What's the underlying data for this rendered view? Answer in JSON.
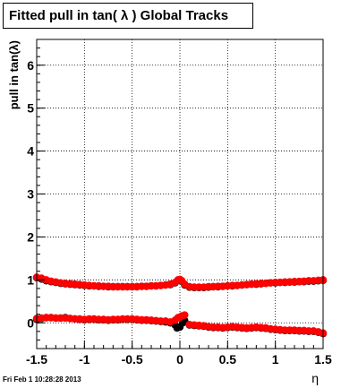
{
  "title": "Fitted pull in tan( λ )  Global Tracks",
  "footer_stamp": "Fri Feb  1 10:28:28 2013",
  "chart_data": {
    "type": "scatter",
    "title": "Fitted pull in tan( λ )  Global Tracks",
    "xlabel": "η",
    "ylabel": "pull in tan(λ)",
    "xlim": [
      -1.5,
      1.5
    ],
    "ylim": [
      -0.6,
      6.6
    ],
    "x_ticks": [
      -1.5,
      -1,
      -0.5,
      0,
      0.5,
      1,
      1.5
    ],
    "x_tick_labels": [
      "-1.5",
      "-1",
      "-0.5",
      "0",
      "0.5",
      "1",
      "1.5"
    ],
    "y_ticks": [
      0,
      1,
      2,
      3,
      4,
      5,
      6
    ],
    "y_tick_labels": [
      "0",
      "1",
      "2",
      "3",
      "4",
      "5",
      "6"
    ],
    "grid": true,
    "series": [
      {
        "color": "#000000",
        "x": [
          -1.5,
          -1.45,
          -1.4,
          -1.35,
          -1.3,
          -1.25,
          -1.2,
          -1.15,
          -1.1,
          -1.05,
          -1.0,
          -0.95,
          -0.9,
          -0.85,
          -0.8,
          -0.75,
          -0.7,
          -0.65,
          -0.6,
          -0.55,
          -0.5,
          -0.45,
          -0.4,
          -0.35,
          -0.3,
          -0.25,
          -0.2,
          -0.15,
          -0.1,
          -0.05,
          -0.02,
          0.0,
          0.02,
          0.05,
          0.1,
          0.15,
          0.2,
          0.25,
          0.3,
          0.35,
          0.4,
          0.45,
          0.5,
          0.55,
          0.6,
          0.65,
          0.7,
          0.75,
          0.8,
          0.85,
          0.9,
          0.95,
          1.0,
          1.05,
          1.1,
          1.15,
          1.2,
          1.25,
          1.3,
          1.35,
          1.4,
          1.45,
          1.5
        ],
        "y": [
          1.05,
          1.02,
          0.98,
          0.96,
          0.94,
          0.92,
          0.91,
          0.9,
          0.89,
          0.88,
          0.87,
          0.86,
          0.86,
          0.85,
          0.85,
          0.84,
          0.84,
          0.84,
          0.84,
          0.84,
          0.84,
          0.84,
          0.85,
          0.85,
          0.86,
          0.86,
          0.87,
          0.88,
          0.89,
          0.93,
          0.99,
          1.0,
          0.97,
          0.88,
          0.83,
          0.82,
          0.82,
          0.82,
          0.83,
          0.84,
          0.84,
          0.85,
          0.86,
          0.86,
          0.87,
          0.88,
          0.89,
          0.9,
          0.9,
          0.91,
          0.92,
          0.93,
          0.93,
          0.94,
          0.94,
          0.95,
          0.95,
          0.96,
          0.96,
          0.97,
          0.97,
          0.98,
          0.99
        ]
      },
      {
        "color": "#ff0000",
        "x": [
          -1.5,
          -1.45,
          -1.4,
          -1.35,
          -1.3,
          -1.25,
          -1.2,
          -1.15,
          -1.1,
          -1.05,
          -1.0,
          -0.95,
          -0.9,
          -0.85,
          -0.8,
          -0.75,
          -0.7,
          -0.65,
          -0.6,
          -0.55,
          -0.5,
          -0.45,
          -0.4,
          -0.35,
          -0.3,
          -0.25,
          -0.2,
          -0.15,
          -0.1,
          -0.05,
          -0.02,
          0.0,
          0.02,
          0.05,
          0.1,
          0.15,
          0.2,
          0.25,
          0.3,
          0.35,
          0.4,
          0.45,
          0.5,
          0.55,
          0.6,
          0.65,
          0.7,
          0.75,
          0.8,
          0.85,
          0.9,
          0.95,
          1.0,
          1.05,
          1.1,
          1.15,
          1.2,
          1.25,
          1.3,
          1.35,
          1.4,
          1.45,
          1.5
        ],
        "y": [
          1.06,
          1.04,
          1.0,
          0.97,
          0.95,
          0.93,
          0.92,
          0.91,
          0.9,
          0.89,
          0.88,
          0.87,
          0.86,
          0.86,
          0.85,
          0.85,
          0.84,
          0.84,
          0.84,
          0.84,
          0.84,
          0.84,
          0.85,
          0.85,
          0.86,
          0.86,
          0.87,
          0.88,
          0.9,
          0.94,
          1.0,
          1.01,
          0.98,
          0.9,
          0.84,
          0.83,
          0.83,
          0.83,
          0.84,
          0.84,
          0.85,
          0.85,
          0.86,
          0.87,
          0.87,
          0.88,
          0.89,
          0.9,
          0.91,
          0.92,
          0.92,
          0.93,
          0.94,
          0.94,
          0.95,
          0.95,
          0.96,
          0.96,
          0.97,
          0.98,
          0.98,
          0.99,
          1.0
        ]
      },
      {
        "color": "#000000",
        "x": [
          -1.5,
          -1.45,
          -1.4,
          -1.35,
          -1.3,
          -1.25,
          -1.2,
          -1.15,
          -1.1,
          -1.05,
          -1.0,
          -0.95,
          -0.9,
          -0.85,
          -0.8,
          -0.75,
          -0.7,
          -0.65,
          -0.6,
          -0.55,
          -0.5,
          -0.45,
          -0.4,
          -0.35,
          -0.3,
          -0.25,
          -0.2,
          -0.15,
          -0.1,
          -0.05,
          -0.03,
          0.0,
          0.03,
          0.05,
          0.1,
          0.15,
          0.2,
          0.25,
          0.3,
          0.35,
          0.4,
          0.45,
          0.5,
          0.55,
          0.6,
          0.65,
          0.7,
          0.75,
          0.8,
          0.85,
          0.9,
          0.95,
          1.0,
          1.05,
          1.1,
          1.15,
          1.2,
          1.25,
          1.3,
          1.35,
          1.4,
          1.45,
          1.5
        ],
        "y": [
          0.08,
          0.1,
          0.12,
          0.12,
          0.11,
          0.11,
          0.12,
          0.1,
          0.09,
          0.08,
          0.07,
          0.08,
          0.08,
          0.07,
          0.07,
          0.06,
          0.07,
          0.07,
          0.08,
          0.08,
          0.08,
          0.07,
          0.06,
          0.06,
          0.05,
          0.04,
          0.03,
          0.02,
          0.0,
          -0.05,
          -0.12,
          -0.1,
          0.0,
          0.05,
          -0.05,
          -0.06,
          -0.07,
          -0.08,
          -0.1,
          -0.11,
          -0.11,
          -0.12,
          -0.11,
          -0.1,
          -0.11,
          -0.12,
          -0.13,
          -0.12,
          -0.11,
          -0.12,
          -0.13,
          -0.15,
          -0.16,
          -0.17,
          -0.18,
          -0.18,
          -0.18,
          -0.19,
          -0.19,
          -0.2,
          -0.2,
          -0.22,
          -0.25
        ]
      },
      {
        "color": "#ff0000",
        "x": [
          -1.5,
          -1.45,
          -1.4,
          -1.35,
          -1.3,
          -1.25,
          -1.2,
          -1.15,
          -1.1,
          -1.05,
          -1.0,
          -0.95,
          -0.9,
          -0.85,
          -0.8,
          -0.75,
          -0.7,
          -0.65,
          -0.6,
          -0.55,
          -0.5,
          -0.45,
          -0.4,
          -0.35,
          -0.3,
          -0.25,
          -0.2,
          -0.15,
          -0.1,
          -0.05,
          -0.02,
          0.0,
          0.02,
          0.05,
          0.1,
          0.15,
          0.2,
          0.25,
          0.3,
          0.35,
          0.4,
          0.45,
          0.5,
          0.55,
          0.6,
          0.65,
          0.7,
          0.75,
          0.8,
          0.85,
          0.9,
          0.95,
          1.0,
          1.05,
          1.1,
          1.15,
          1.2,
          1.25,
          1.3,
          1.35,
          1.4,
          1.45,
          1.5
        ],
        "y": [
          0.1,
          0.11,
          0.12,
          0.12,
          0.11,
          0.11,
          0.11,
          0.1,
          0.09,
          0.09,
          0.08,
          0.09,
          0.09,
          0.08,
          0.08,
          0.07,
          0.08,
          0.08,
          0.09,
          0.09,
          0.09,
          0.08,
          0.07,
          0.07,
          0.06,
          0.05,
          0.04,
          0.04,
          0.02,
          0.06,
          0.12,
          0.13,
          0.16,
          0.18,
          -0.04,
          -0.05,
          -0.06,
          -0.07,
          -0.09,
          -0.1,
          -0.1,
          -0.11,
          -0.1,
          -0.09,
          -0.1,
          -0.11,
          -0.12,
          -0.11,
          -0.1,
          -0.11,
          -0.12,
          -0.14,
          -0.15,
          -0.16,
          -0.17,
          -0.17,
          -0.17,
          -0.18,
          -0.18,
          -0.19,
          -0.19,
          -0.21,
          -0.24
        ]
      }
    ]
  }
}
